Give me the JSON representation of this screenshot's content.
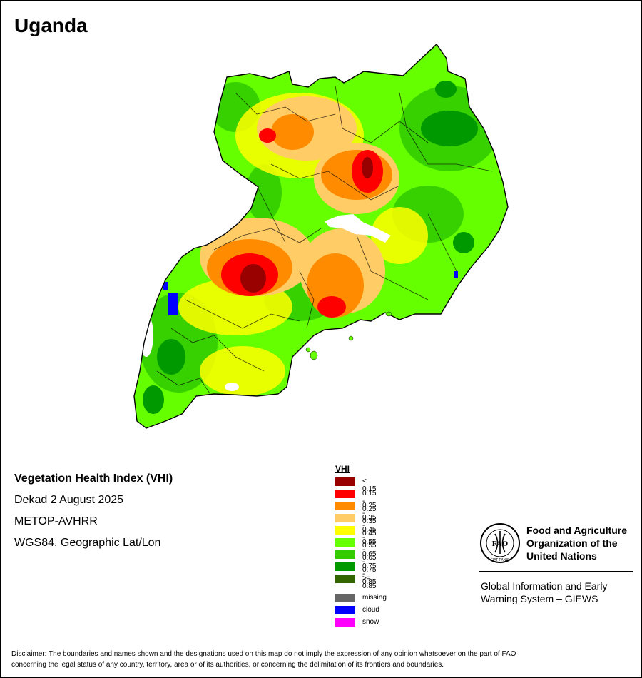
{
  "map_title": "Uganda",
  "info": {
    "index_name": "Vegetation Health Index (VHI)",
    "period": "Dekad 2 August 2025",
    "sensor": "METOP-AVHRR",
    "projection": "WGS84, Geographic Lat/Lon"
  },
  "legend": {
    "title": "VHI",
    "classes": [
      {
        "label": "< 0.15",
        "color": "#990000"
      },
      {
        "label": "0.15 - 0.25",
        "color": "#ff0000"
      },
      {
        "label": "0.25 - 0.35",
        "color": "#ff8c00"
      },
      {
        "label": "0.35 - 0.45",
        "color": "#ffcc66"
      },
      {
        "label": "0.45 - 0.55",
        "color": "#ffff00"
      },
      {
        "label": "0.55 - 0.65",
        "color": "#66ff00"
      },
      {
        "label": "0.65 - 0.75",
        "color": "#33cc00"
      },
      {
        "label": "0.75 - 0.85",
        "color": "#009900"
      },
      {
        "label": ">= 0.85",
        "color": "#336600"
      }
    ],
    "special": [
      {
        "label": "missing",
        "color": "#666666"
      },
      {
        "label": "cloud",
        "color": "#0000ff"
      },
      {
        "label": "snow",
        "color": "#ff00ff"
      }
    ]
  },
  "org": {
    "logo_text": "FIAT PANIS",
    "logo_letters": "FAO",
    "name_line1": "Food and Agriculture",
    "name_line2": "Organization of the",
    "name_line3": "United Nations",
    "system_line1": "Global Information and Early",
    "system_line2": "Warning System – GIEWS"
  },
  "disclaimer": {
    "line1": "Disclaimer: The boundaries and names shown and the designations used on this map do not imply the expression of any opinion whatsoever on the part of FAO",
    "line2": "concerning the legal status of any country, territory, area or of its authorities, or concerning the delimitation of its frontiers and boundaries."
  }
}
